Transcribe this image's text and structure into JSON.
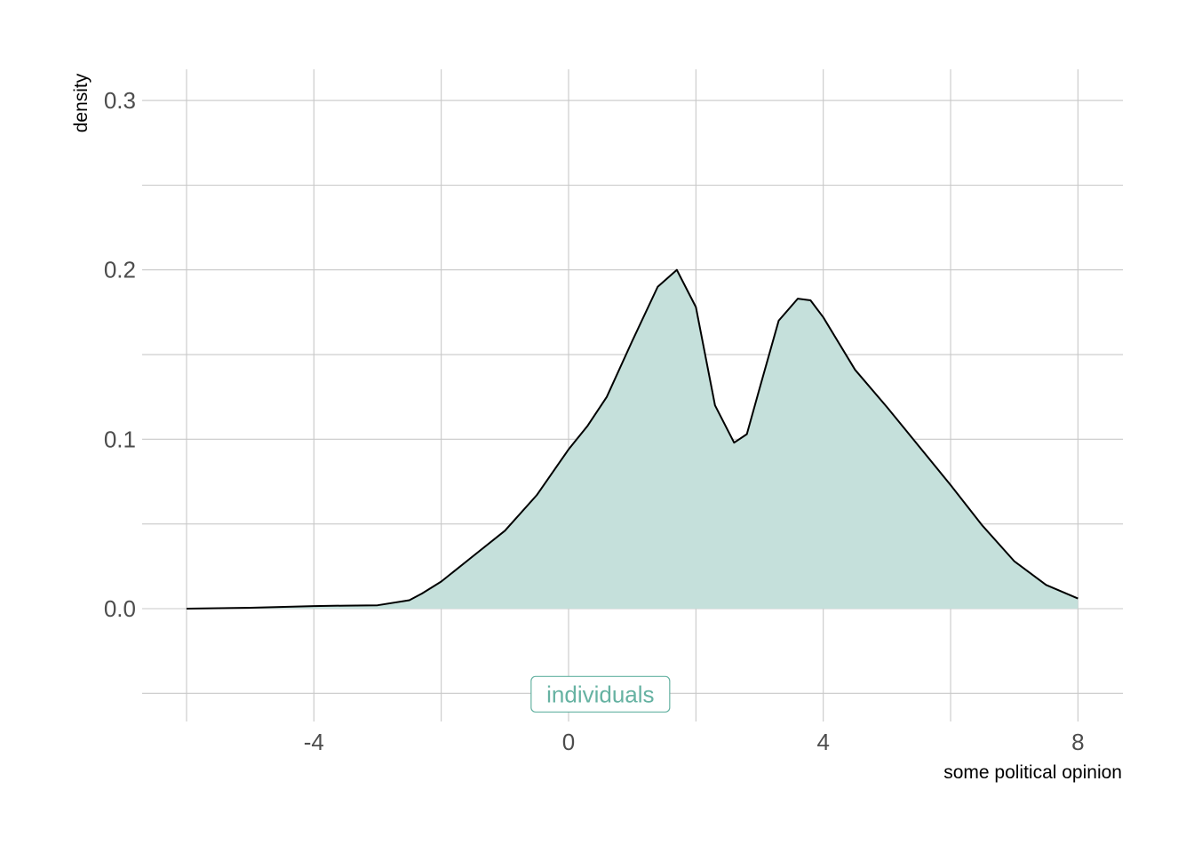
{
  "chart_data": {
    "type": "area",
    "xlabel": "some political opinion",
    "ylabel": "density",
    "xlim": [
      -6,
      8
    ],
    "ylim": [
      -0.05,
      0.3
    ],
    "x_ticks": [
      -4,
      0,
      4,
      8
    ],
    "x_tick_labels": [
      "-4",
      "0",
      "4",
      "8"
    ],
    "y_ticks": [
      0.0,
      0.1,
      0.2,
      0.3
    ],
    "y_tick_labels": [
      "0.0",
      "0.1",
      "0.2",
      "0.3"
    ],
    "grid": true,
    "fill_color": "#c5e0db",
    "line_color": "#000000",
    "series": [
      {
        "x": [
          -6,
          -5,
          -4,
          -3.5,
          -3,
          -2.5,
          -2.3,
          -2,
          -1.5,
          -1,
          -0.5,
          0,
          0.3,
          0.6,
          1,
          1.4,
          1.7,
          2,
          2.3,
          2.6,
          2.8,
          3,
          3.3,
          3.6,
          3.8,
          4,
          4.5,
          5,
          5.5,
          6,
          6.5,
          7,
          7.5,
          8
        ],
        "y": [
          0,
          0.0005,
          0.0015,
          0.0018,
          0.002,
          0.005,
          0.009,
          0.016,
          0.031,
          0.046,
          0.067,
          0.094,
          0.108,
          0.125,
          0.158,
          0.19,
          0.2,
          0.178,
          0.12,
          0.098,
          0.103,
          0.13,
          0.17,
          0.183,
          0.182,
          0.172,
          0.141,
          0.119,
          0.096,
          0.073,
          0.049,
          0.028,
          0.014,
          0.006
        ]
      }
    ],
    "annotations": [
      {
        "text": "individuals",
        "x": 0.5,
        "y": -0.05,
        "color": "#66b2a2"
      }
    ]
  }
}
